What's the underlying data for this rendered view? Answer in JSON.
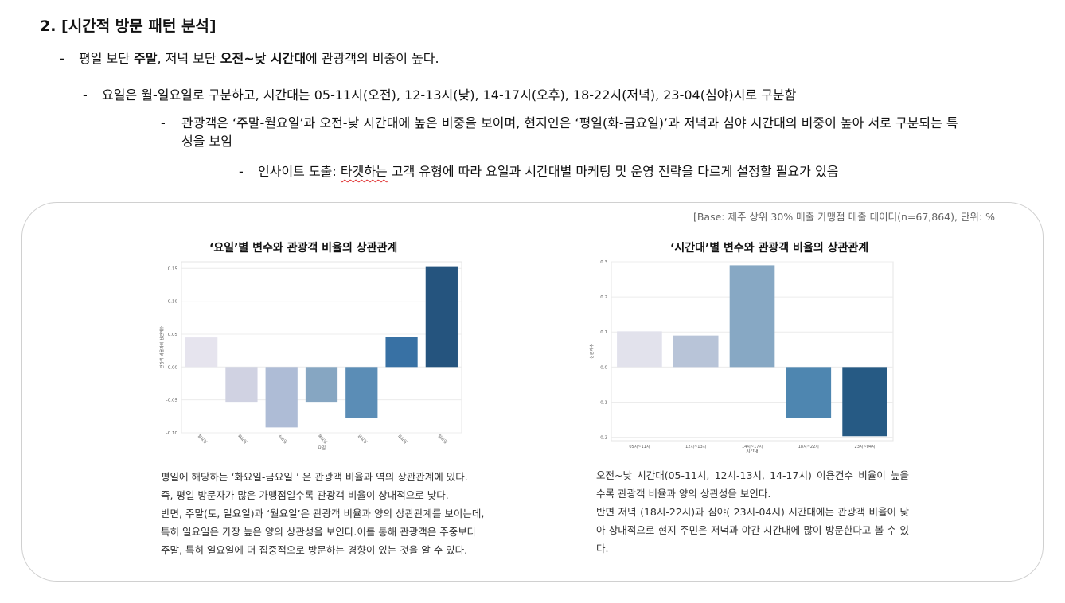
{
  "heading": "2. [시간적 방문 패턴 분석]",
  "bullets": {
    "dash": "-",
    "b1": {
      "t1": "평일 보단 ",
      "t2": "주말",
      "t3": ", 저녁 보단 ",
      "t4": "오전~낮 시간대",
      "t5": "에 관광객의 비중이 높다."
    },
    "b2": "요일은 월-일요일로 구분하고, 시간대는 05-11시(오전), 12-13시(낮), 14-17시(오후), 18-22시(저녁), 23-04(심야)시로 구분함",
    "b3": "관광객은 ‘주말-월요일’과 오전-낮 시간대에 높은 비중을 보이며, 현지인은 ‘평일(화-금요일)’과 저녁과 심야 시간대의 비중이 높아 서로 구분되는 특성을 보임",
    "b4": {
      "t1": "인사이트 도출: ",
      "t2": "타겟하는",
      "t3": " 고객 유형에 따라 요일과 시간대별 마케팅 및 운영 전략을 다르게 설정할 필요가 있음"
    }
  },
  "base_note": "[Base: 제주 상위 30% 매출 가맹점 매출 데이터(n=67,864), 단위: %",
  "left_title": "‘요일’별 변수와 관광객 비율의 상관관계",
  "right_title": "‘시간대’별 변수와 관광객 비율의 상관관계",
  "left_desc": [
    "평일에 해당하는 ‘화요일-금요일 ’ 은 관광객 비율과 역의 상관관계에 있다.",
    "즉, 평일 방문자가 많은 가맹점일수록 관광객 비율이 상대적으로 낮다.",
    "반면, 주말(토, 일요일)과 ‘월요일’은 관광객 비율과 양의 상관관계를 보이는데,",
    "특히 일요일은 가장 높은 양의 상관성을 보인다.이를 통해 관광객은 주중보다",
    "주말, 특히 일요일에 더 집중적으로 방문하는 경향이 있는 것을 알 수 있다."
  ],
  "right_desc": [
    "오전~낮 시간대(05-11시, 12시-13시, 14-17시) 이용건수 비율이 높을 수록 관광객 비율과 양의 상관성을 보인다.",
    "반면 저녁 (18시-22시)과 심야( 23시-04시) 시간대에는 관광객 비율이 낮아 상대적으로 현지 주민은 저녁과 야간 시간대에 많이 방문한다고 볼 수 있다."
  ],
  "chart_data": [
    {
      "type": "bar",
      "title": "‘요일’별 변수와 관광객 비율의 상관관계",
      "xlabel": "요일",
      "ylabel": "관광객 비율과의 상관계수",
      "categories": [
        "월요일",
        "화요일",
        "수요일",
        "목요일",
        "금요일",
        "토요일",
        "일요일"
      ],
      "values": [
        0.045,
        -0.053,
        -0.092,
        -0.053,
        -0.078,
        0.046,
        0.152
      ],
      "colors": [
        "#e6e4ee",
        "#d0d2e2",
        "#aebcd6",
        "#86a6c2",
        "#5b8db6",
        "#3871a4",
        "#25547e"
      ],
      "ylim": [
        -0.1,
        0.16
      ],
      "yticks": [
        -0.1,
        -0.05,
        0.0,
        0.05,
        0.1,
        0.15
      ],
      "ytick_labels": [
        "-0.10",
        "-0.05",
        "0.00",
        "0.05",
        "0.10",
        "0.15"
      ],
      "grid": true
    },
    {
      "type": "bar",
      "title": "‘시간대’별 변수와 관광객 비율의 상관관계",
      "xlabel": "시간대",
      "ylabel": "상관계수",
      "categories": [
        "05시~11시",
        "12시~13시",
        "14시~17시",
        "18시~22시",
        "23시~04시"
      ],
      "values": [
        0.102,
        0.09,
        0.29,
        -0.145,
        -0.197
      ],
      "colors": [
        "#e2e2ec",
        "#b8c4d8",
        "#87a8c4",
        "#4e86b0",
        "#265a84"
      ],
      "ylim": [
        -0.21,
        0.3
      ],
      "yticks": [
        -0.2,
        -0.1,
        0.0,
        0.1,
        0.2,
        0.3
      ],
      "ytick_labels": [
        "-0.2",
        "-0.1",
        "0.0",
        "0.1",
        "0.2",
        "0.3"
      ],
      "grid": true
    }
  ]
}
